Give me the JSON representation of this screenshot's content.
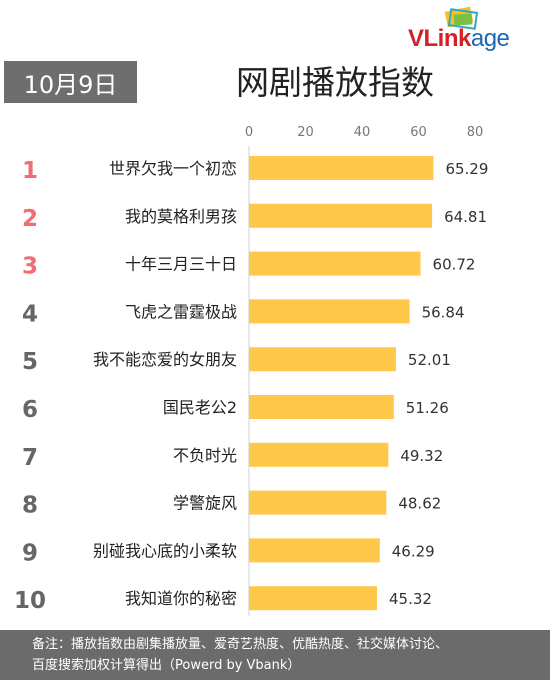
{
  "header": {
    "date_badge": "10月9日",
    "title": "网剧播放指数",
    "logo": {
      "part1": "VLink",
      "part2": "age"
    }
  },
  "footer": {
    "note_line1": "备注：播放指数由剧集播放量、爱奇艺热度、优酷热度、社交媒体讨论、",
    "note_line2": "百度搜索加权计算得出（Powerd by Vbank）"
  },
  "colors": {
    "bar": "#ffc84b",
    "rank_top3": "#f06e73",
    "rank_other": "#666666",
    "badge_bg": "#6e6e6e",
    "footer_bg": "#6b6b6b"
  },
  "chart_data": {
    "type": "bar",
    "orientation": "horizontal",
    "ranks": [
      "1",
      "2",
      "3",
      "4",
      "5",
      "6",
      "7",
      "8",
      "9",
      "10"
    ],
    "categories": [
      "世界欠我一个初恋",
      "我的莫格利男孩",
      "十年三月三十日",
      "飞虎之雷霆极战",
      "我不能恋爱的女朋友",
      "国民老公2",
      "不负时光",
      "学警旋风",
      "别碰我心底的小柔软",
      "我知道你的秘密"
    ],
    "values": [
      65.29,
      64.81,
      60.72,
      56.84,
      52.01,
      51.26,
      49.32,
      48.62,
      46.29,
      45.32
    ],
    "xticks": [
      0,
      20,
      40,
      60,
      80
    ],
    "xlim": [
      0,
      80
    ],
    "grid": false,
    "legend": "none"
  }
}
